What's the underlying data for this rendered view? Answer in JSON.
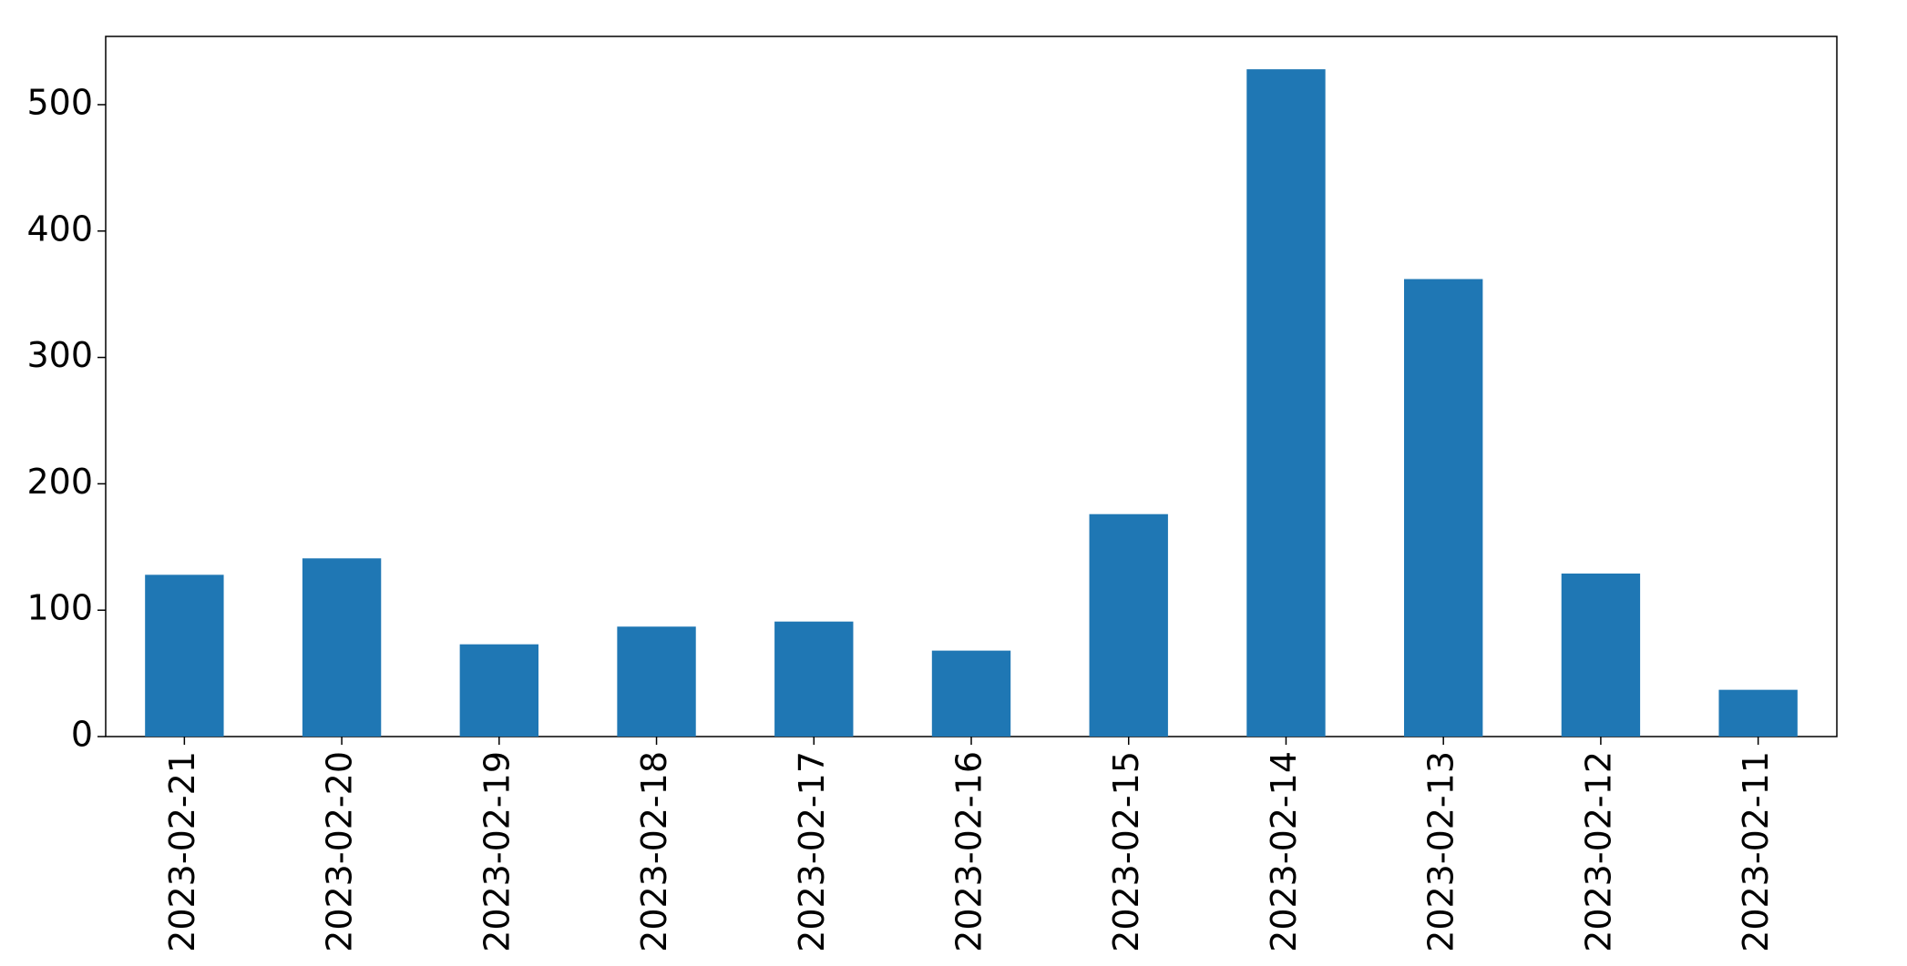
{
  "chart_data": {
    "type": "bar",
    "categories": [
      "2023-02-21",
      "2023-02-20",
      "2023-02-19",
      "2023-02-18",
      "2023-02-17",
      "2023-02-16",
      "2023-02-15",
      "2023-02-14",
      "2023-02-13",
      "2023-02-12",
      "2023-02-11"
    ],
    "values": [
      128,
      141,
      73,
      87,
      91,
      68,
      176,
      528,
      362,
      129,
      37
    ],
    "color": "#1f77b4",
    "ylim": [
      0,
      554
    ],
    "yticks": [
      0,
      100,
      200,
      300,
      400,
      500
    ],
    "grid": false
  }
}
